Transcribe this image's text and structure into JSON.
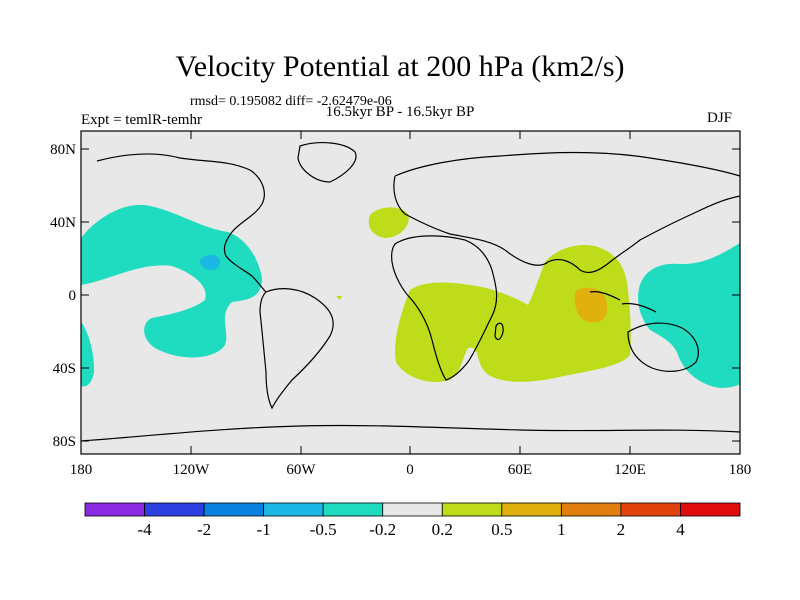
{
  "title": "Velocity Potential at 200 hPa (km2/s)",
  "stats": "rmsd= 0.195082 diff= -2.62479e-06",
  "expt": "Expt = temlR-temhr",
  "period": "16.5kyr BP - 16.5kyr BP",
  "season": "DJF",
  "axes": {
    "y_ticks": [
      "80N",
      "40N",
      "0",
      "40S",
      "80S"
    ],
    "x_ticks": [
      "180",
      "120W",
      "60W",
      "0",
      "60E",
      "120E",
      "180"
    ]
  },
  "colorbar": {
    "labels": [
      "-4",
      "-2",
      "-1",
      "-0.5",
      "-0.2",
      "0.2",
      "0.5",
      "1",
      "2",
      "4"
    ],
    "colors": [
      "#8a2be2",
      "#2d3fe0",
      "#0a80e0",
      "#1bb8e6",
      "#1fdcc0",
      "#e8e8e8",
      "#bfdc1a",
      "#e0b00e",
      "#e07e10",
      "#e0430e",
      "#e00d0d"
    ]
  },
  "palette": {
    "land_ocean_bg": "#e8e8e8",
    "neg_weak": "#1fdcc0",
    "neg_mid": "#1bb8e6",
    "pos_weak": "#bfdc1a",
    "pos_mid": "#e0b00e"
  }
}
